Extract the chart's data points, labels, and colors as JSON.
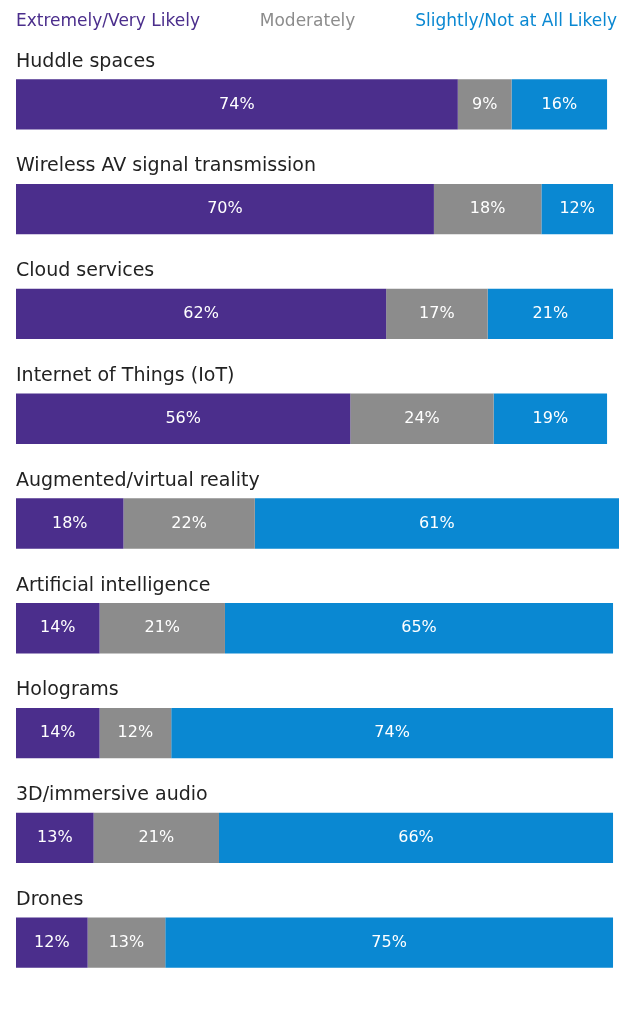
{
  "chart_data": {
    "type": "bar",
    "orientation": "horizontal",
    "stacked": true,
    "categories": [
      "Huddle spaces",
      "Wireless AV signal transmission",
      "Cloud services",
      "Internet of Things (IoT)",
      "Augmented/virtual reality",
      "Artificial intelligence",
      "Holograms",
      "3D/immersive audio",
      "Drones"
    ],
    "series": [
      {
        "name": "Extremely/Very Likely",
        "color": "#4b2e8c",
        "values": [
          74,
          70,
          62,
          56,
          18,
          14,
          14,
          13,
          12
        ],
        "value_labels": [
          "74%",
          "70%",
          "62%",
          "56%",
          "18%",
          "14%",
          "14%",
          "13%",
          "12%"
        ]
      },
      {
        "name": "Moderately",
        "color": "#8c8c8c",
        "values": [
          9,
          18,
          17,
          24,
          22,
          21,
          12,
          21,
          13
        ],
        "value_labels": [
          "9%",
          "18%",
          "17%",
          "24%",
          "22%",
          "21%",
          "12%",
          "21%",
          "13%"
        ]
      },
      {
        "name": "Slightly/Not at All Likely",
        "color": "#0a88d2",
        "values": [
          16,
          12,
          21,
          19,
          61,
          65,
          74,
          66,
          75
        ],
        "value_labels": [
          "16%",
          "12%",
          "21%",
          "19%",
          "61%",
          "65%",
          "74%",
          "66%",
          "75%"
        ]
      }
    ],
    "xlim": [
      0,
      101
    ],
    "legend": "top",
    "tick_labels": "y"
  }
}
